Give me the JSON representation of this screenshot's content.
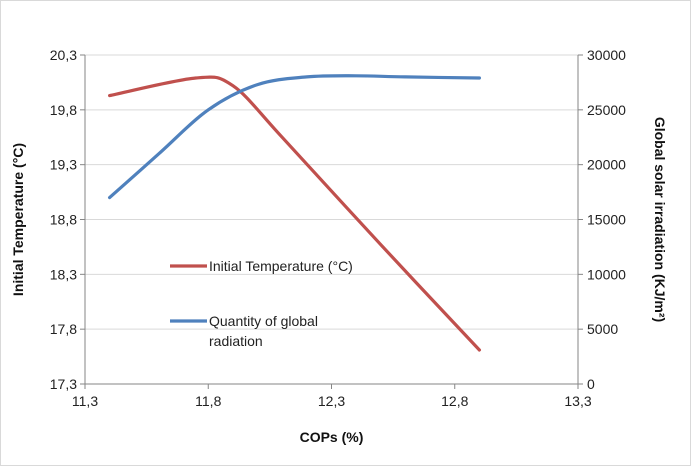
{
  "chart_data": {
    "type": "line",
    "title": "",
    "xlabel": "COPs (%)",
    "ylabel_left": "Initial Temperature (°C)",
    "ylabel_right": "Global solar irradiation (KJ/m²)",
    "xlim": [
      11.3,
      13.3
    ],
    "ylim_left": [
      17.3,
      20.3
    ],
    "ylim_right": [
      0,
      30000
    ],
    "x_ticks": [
      "11,3",
      "11,8",
      "12,3",
      "12,8",
      "13,3"
    ],
    "y_left_ticks": [
      "17,3",
      "17,8",
      "18,3",
      "18,8",
      "19,3",
      "19,8",
      "20,3"
    ],
    "y_right_ticks": [
      "0",
      "5000",
      "10000",
      "15000",
      "20000",
      "25000",
      "30000"
    ],
    "grid": true,
    "legend_placement": "center-left",
    "series": [
      {
        "name": "Initial Temperature (°C)",
        "axis": "left",
        "color": "#c0504d",
        "x": [
          11.4,
          11.75,
          11.9,
          12.1,
          12.5,
          12.9
        ],
        "y": [
          19.93,
          20.09,
          20.02,
          19.55,
          18.57,
          17.61
        ]
      },
      {
        "name": "Quantity of global radiation",
        "axis": "right",
        "color": "#4f81bd",
        "x": [
          11.4,
          11.6,
          11.8,
          12.0,
          12.2,
          12.4,
          12.6,
          12.9
        ],
        "y": [
          17000,
          21000,
          25000,
          27300,
          28000,
          28100,
          28000,
          27900
        ]
      }
    ]
  }
}
